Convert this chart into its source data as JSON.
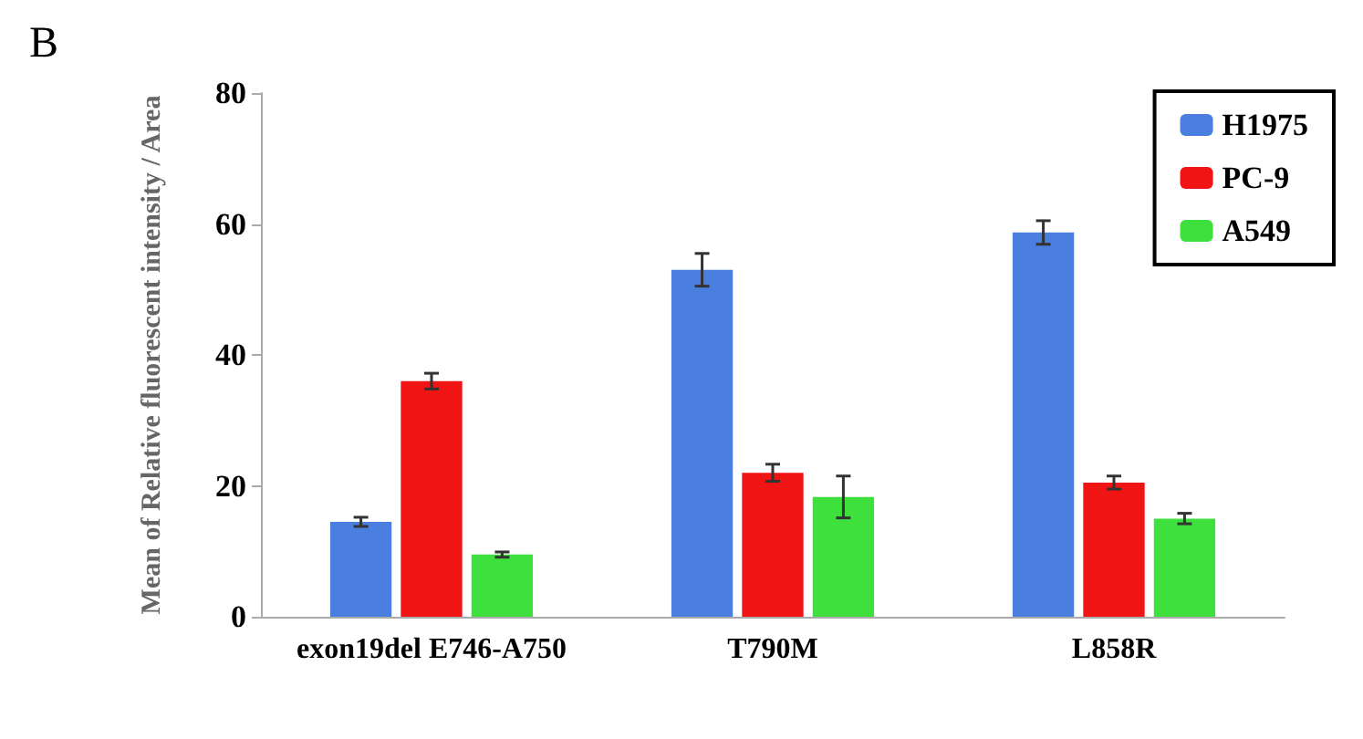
{
  "chart_data": {
    "type": "bar",
    "ylabel": "Mean of Relative fluorescent intensity / Area",
    "annotations": [
      "B"
    ],
    "categories": [
      "exon19del E746-A750",
      "T790M",
      "L858R"
    ],
    "series": [
      {
        "name": "H1975",
        "color": "#4a7fe0",
        "values": [
          14.5,
          53,
          58.7
        ],
        "errors": [
          0.7,
          2.5,
          1.8
        ]
      },
      {
        "name": "PC-9",
        "color": "#f01414",
        "values": [
          36,
          22,
          20.5
        ],
        "errors": [
          1.2,
          1.3,
          1
        ]
      },
      {
        "name": "A549",
        "color": "#3ee03e",
        "values": [
          9.5,
          18.3,
          15
        ],
        "errors": [
          0.4,
          3.2,
          0.8
        ]
      }
    ],
    "ylim": [
      0,
      80
    ],
    "yticks": [
      0,
      20,
      40,
      60,
      80
    ],
    "grid": false,
    "legend": "top right"
  }
}
